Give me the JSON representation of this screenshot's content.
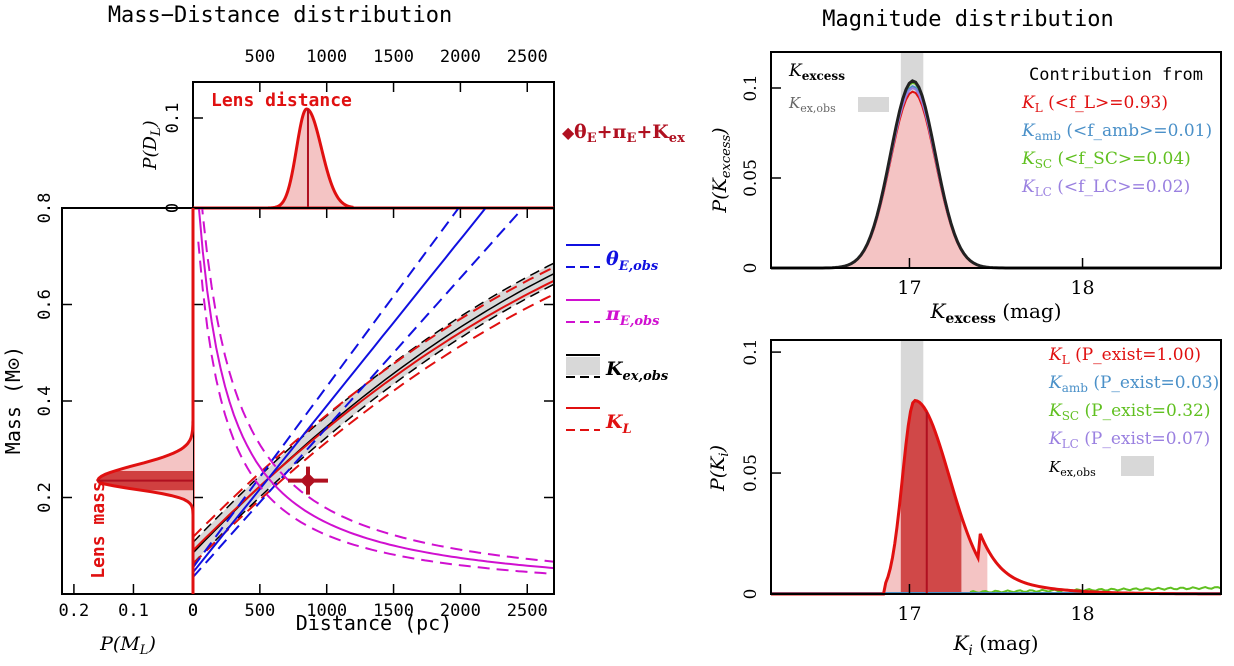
{
  "left_title": "Mass−Distance distribution",
  "right_title": "Magnitude distribution",
  "colors": {
    "red": "#e01010",
    "darkred": "#b01020",
    "blue": "#1010e0",
    "magenta": "#d010d0",
    "cyan": "#4a90c8",
    "green": "#60c020",
    "purple": "#9a80e0",
    "grey": "#d8d8d8"
  },
  "chart_data": [
    {
      "type": "area",
      "id": "lens-distance",
      "annotation": "Lens distance",
      "ylabel": "P(D_L)",
      "top_ticks": [
        "500",
        "1000",
        "1500",
        "2000",
        "2500"
      ],
      "top_tick_values": [
        500,
        1000,
        1500,
        2000,
        2500
      ],
      "y_ticks": [
        "0",
        "0.1"
      ],
      "xlim": [
        0,
        2700
      ],
      "ylim": [
        0,
        0.14
      ],
      "peak_x": 850,
      "peak_y": 0.11,
      "median": 860,
      "band": [
        790,
        960
      ],
      "side_label": "θE+πE+Kex"
    },
    {
      "type": "line",
      "id": "mass-distance",
      "xlabel": "Distance (pc)",
      "ylabel": "Mass (M⊙)",
      "x_ticks": [
        "0",
        "500",
        "1000",
        "1500",
        "2000",
        "2500"
      ],
      "x_tick_values": [
        0,
        500,
        1000,
        1500,
        2000,
        2500
      ],
      "y_ticks": [
        "0.2",
        "0.4",
        "0.6",
        "0.8"
      ],
      "y_tick_values": [
        0.2,
        0.4,
        0.6,
        0.8
      ],
      "xlim": [
        0,
        2700
      ],
      "ylim": [
        0,
        0.8
      ],
      "best_fit": {
        "x": 860,
        "y": 0.235
      },
      "legend": [
        {
          "label": "θE,obs",
          "color": "#1010e0"
        },
        {
          "label": "πE,obs",
          "color": "#d010d0"
        },
        {
          "label": "Kex,obs",
          "color": "#000000"
        },
        {
          "label": "KL",
          "color": "#e01010"
        }
      ]
    },
    {
      "type": "area",
      "id": "lens-mass",
      "annotation": "Lens mass",
      "xlabel": "P(M_L)",
      "x_ticks": [
        "0.2",
        "0.1",
        "0"
      ],
      "x_tick_values": [
        0.2,
        0.1,
        0
      ],
      "xlim": [
        0.22,
        0
      ],
      "peak_mass": 0.235,
      "peak_p": 0.16,
      "band": [
        0.215,
        0.255
      ]
    },
    {
      "type": "area",
      "id": "k-excess",
      "xlabel": "K_excess (mag)",
      "ylabel": "P(K_excess)",
      "x_ticks": [
        "17",
        "18"
      ],
      "x_tick_values": [
        17,
        18
      ],
      "y_ticks": [
        "0",
        "0.05",
        "0.1"
      ],
      "y_tick_values": [
        0,
        0.05,
        0.1
      ],
      "xlim": [
        16.2,
        18.8
      ],
      "ylim": [
        0,
        0.12
      ],
      "series": [
        {
          "name": "K_L",
          "peak": 0.098,
          "contribution": "(<f_L>=0.93)",
          "color": "#e01010"
        },
        {
          "name": "K_amb",
          "peak": 0.001,
          "contribution": "(<f_amb>=0.01)",
          "color": "#4a90c8"
        },
        {
          "name": "K_SC",
          "peak": 0.004,
          "contribution": "(<f_SC>=0.04)",
          "color": "#60c020"
        },
        {
          "name": "K_LC",
          "peak": 0.002,
          "contribution": "(<f_LC>=0.02)",
          "color": "#9a80e0"
        }
      ],
      "total_peak": 0.104,
      "center": 17.02,
      "sigma": 0.13,
      "obs_band": [
        16.95,
        17.08
      ],
      "legend_title": "Contribution from",
      "legend_excess": "Kexcess",
      "legend_obs": "Kex,obs"
    },
    {
      "type": "area",
      "id": "k-i",
      "xlabel": "K_i (mag)",
      "ylabel": "P(K_i)",
      "x_ticks": [
        "17",
        "18"
      ],
      "x_tick_values": [
        17,
        18
      ],
      "y_ticks": [
        "0",
        "0.05",
        "0.1"
      ],
      "y_tick_values": [
        0,
        0.05,
        0.1
      ],
      "xlim": [
        16.2,
        18.8
      ],
      "ylim": [
        0,
        0.105
      ],
      "series": [
        {
          "name": "K_L",
          "peak": 0.08,
          "existence": "(P_exist=1.00)",
          "color": "#e01010"
        },
        {
          "name": "K_amb",
          "existence": "(P_exist=0.03)",
          "color": "#4a90c8"
        },
        {
          "name": "K_SC",
          "existence": "(P_exist=0.32)",
          "color": "#60c020"
        },
        {
          "name": "K_LC",
          "existence": "(P_exist=0.07)",
          "color": "#9a80e0"
        }
      ],
      "median": 17.1,
      "band": [
        16.95,
        17.3
      ],
      "outer_band": [
        16.85,
        17.45
      ],
      "obs_band": [
        16.95,
        17.08
      ],
      "legend_obs": "Kex,obs"
    }
  ]
}
